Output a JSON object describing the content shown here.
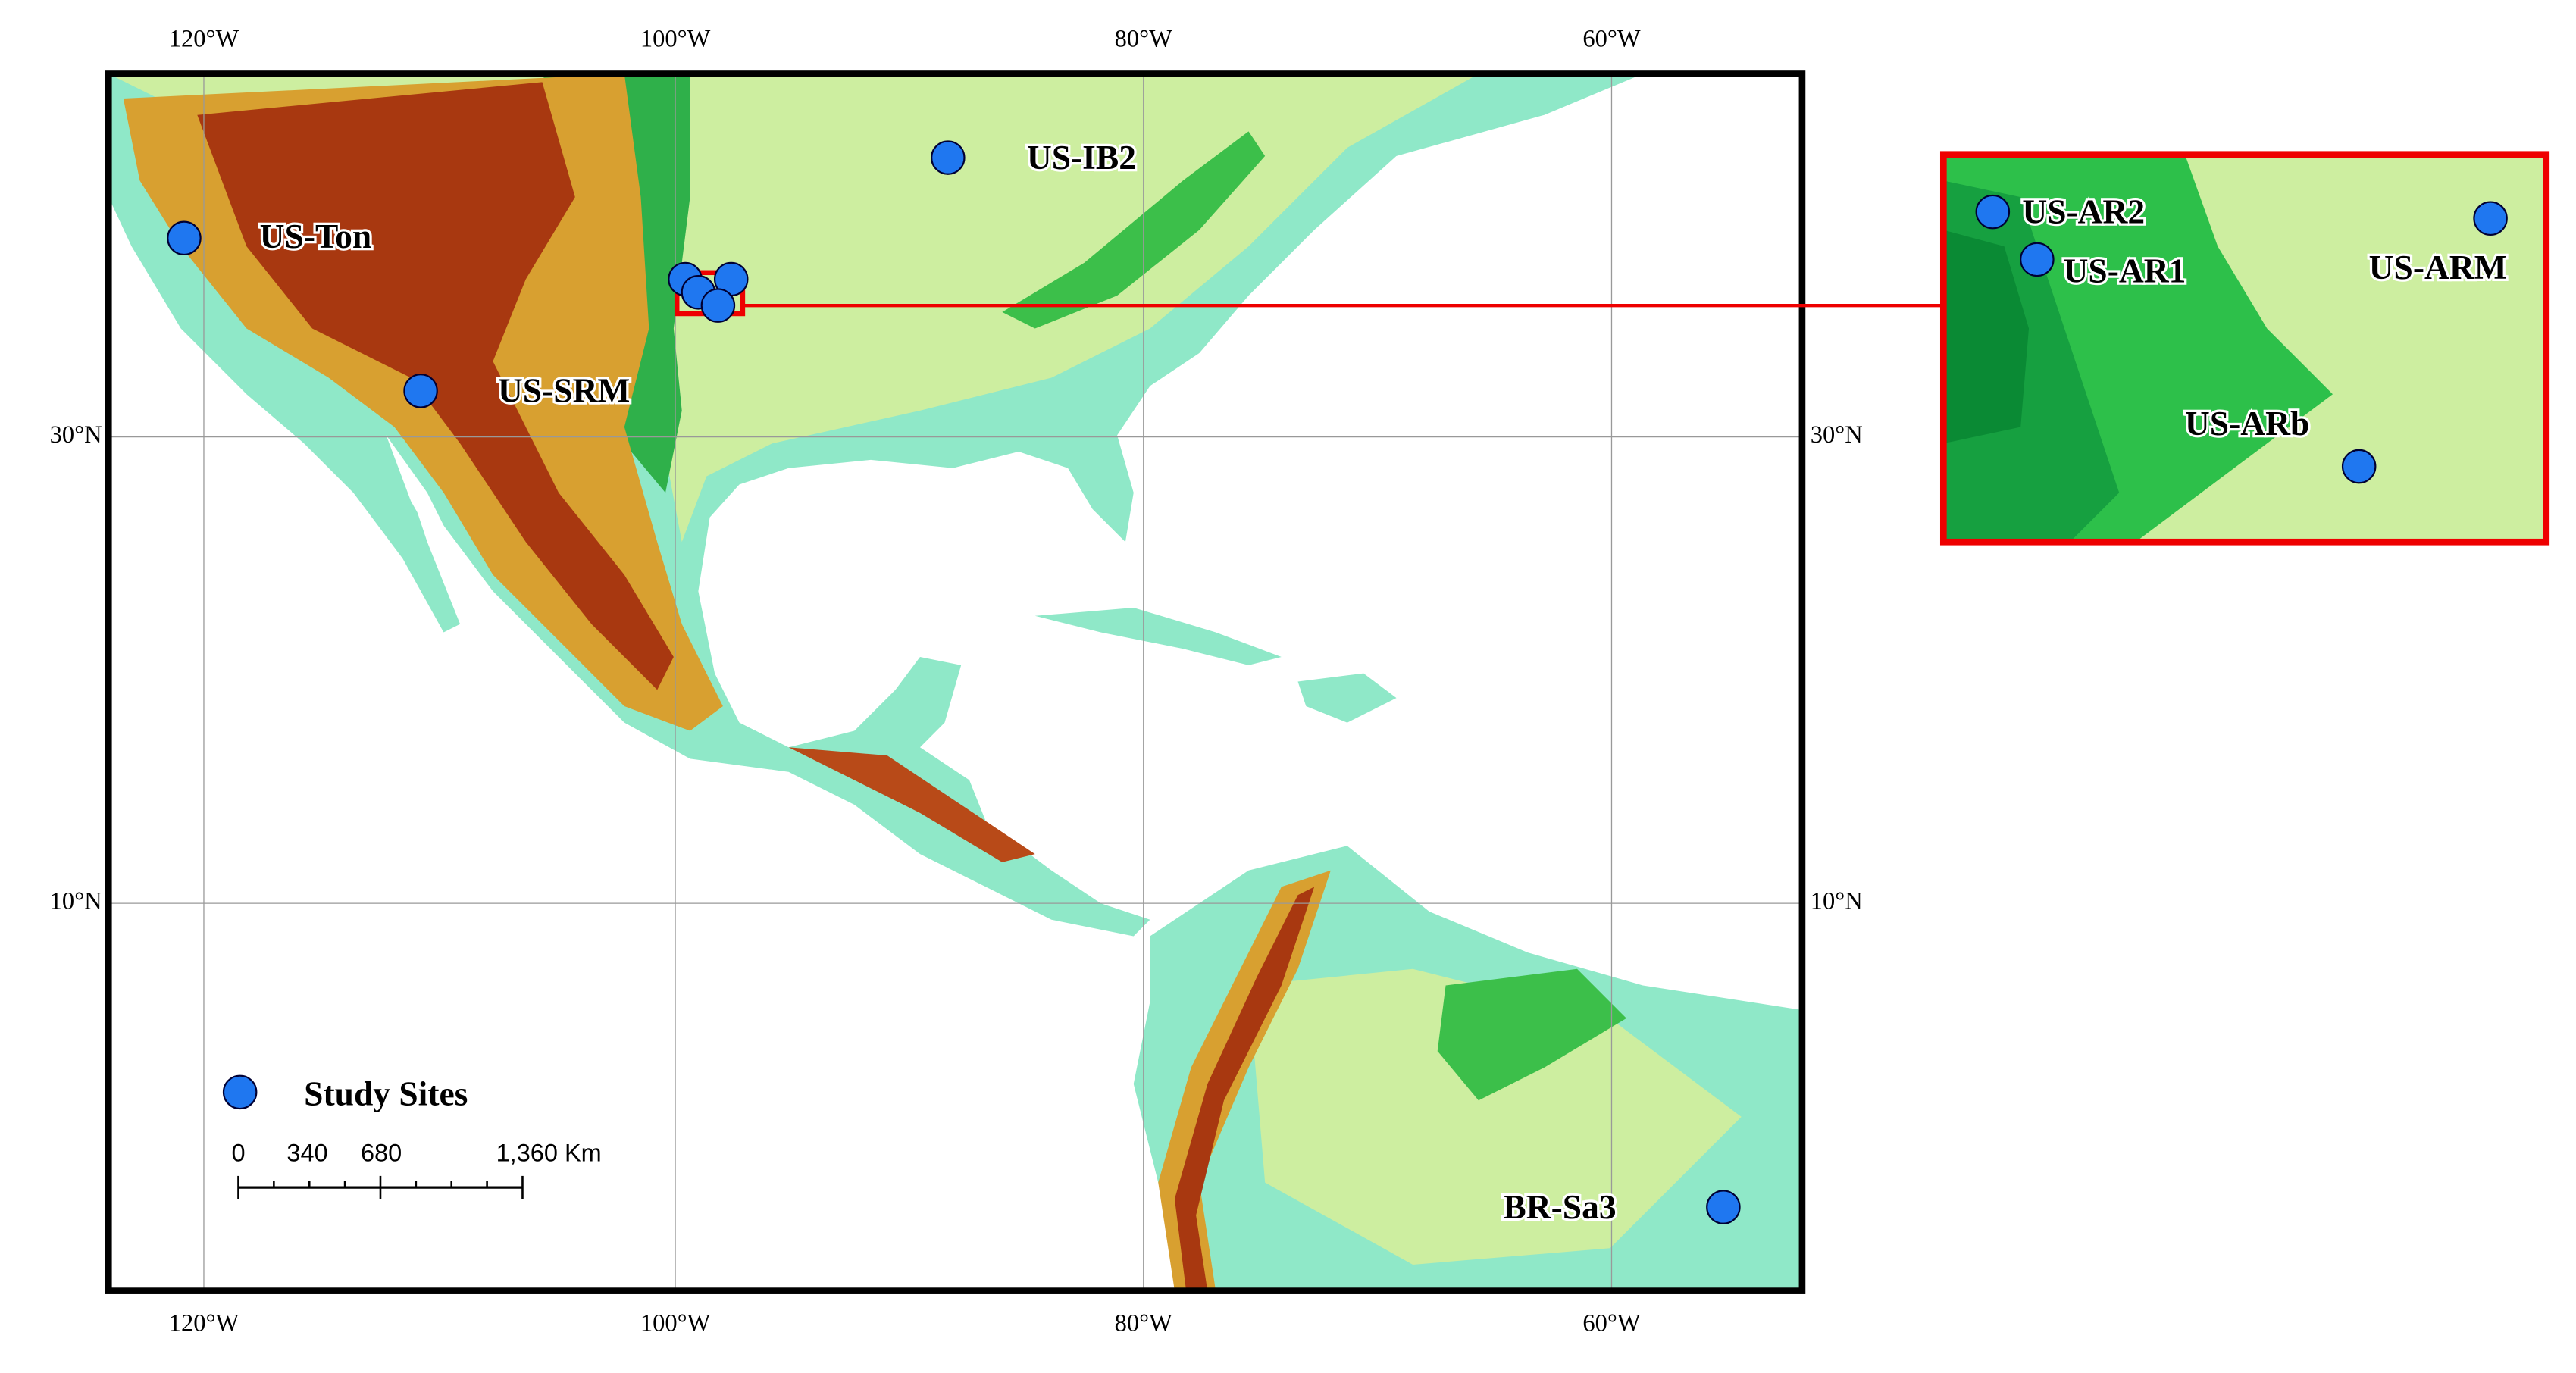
{
  "map": {
    "longitude_labels": [
      "120°W",
      "100°W",
      "80°W",
      "60°W"
    ],
    "latitude_labels": [
      "30°N",
      "10°N"
    ],
    "sites": [
      "US-Ton",
      "US-SRM",
      "US-IB2",
      "BR-Sa3"
    ],
    "inset_sites": [
      "US-AR2",
      "US-AR1",
      "US-ARM",
      "US-ARb"
    ],
    "legend": {
      "label": "Study Sites"
    },
    "scale_bar": {
      "labels": [
        "0",
        "340",
        "680",
        "1,360 Km"
      ]
    }
  }
}
